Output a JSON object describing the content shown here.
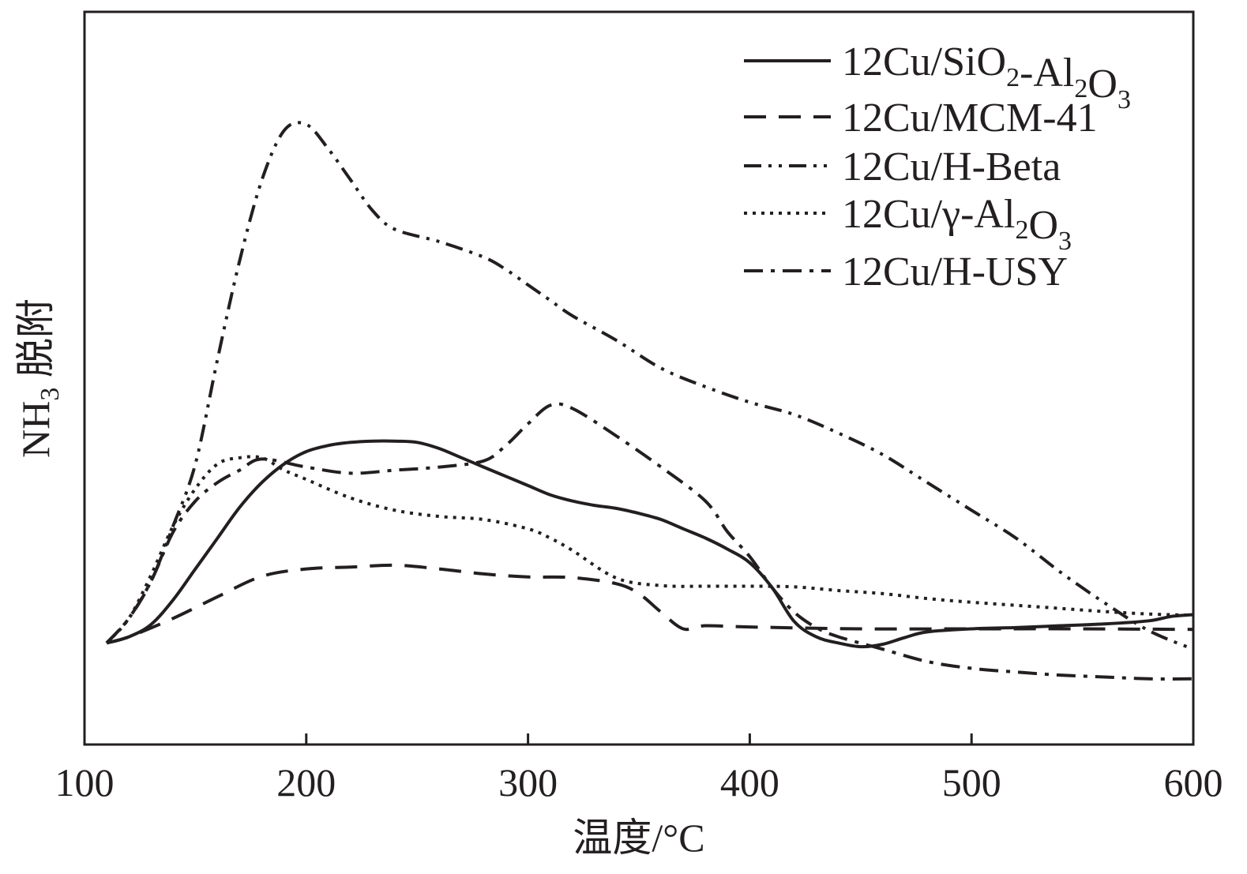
{
  "chart_data": {
    "type": "line",
    "xlabel": "温度/°C",
    "ylabel": "NH3 脱附",
    "ylabel_main": "NH",
    "ylabel_sub": "3",
    "ylabel_rest": " 脱附",
    "xlim": [
      100,
      600
    ],
    "ylim": [
      0,
      100
    ],
    "xticks": [
      100,
      200,
      300,
      400,
      500,
      600
    ],
    "xtick_labels": [
      "100",
      "200",
      "300",
      "400",
      "500",
      "600"
    ],
    "grid": false,
    "legend_position": "top-right",
    "series": [
      {
        "name": "12Cu/SiO2-Al2O3",
        "name_parts": [
          {
            "t": "12Cu/SiO"
          },
          {
            "t": "2",
            "sub": true
          },
          {
            "t": "-Al"
          },
          {
            "t": "2",
            "sub": true
          },
          {
            "t": "O"
          },
          {
            "t": "3",
            "sub": true
          }
        ],
        "dash": "solid",
        "x": [
          110,
          120,
          130,
          140,
          150,
          160,
          170,
          180,
          190,
          200,
          210,
          220,
          230,
          240,
          250,
          260,
          270,
          280,
          290,
          300,
          310,
          320,
          330,
          340,
          350,
          360,
          370,
          380,
          390,
          400,
          410,
          420,
          430,
          440,
          450,
          460,
          470,
          480,
          500,
          520,
          540,
          560,
          580,
          590,
          600
        ],
        "y": [
          8,
          9,
          11,
          15,
          20,
          25,
          30,
          34,
          37,
          39,
          40,
          40.5,
          40.7,
          40.7,
          40.5,
          39.5,
          38,
          36.5,
          35,
          33.5,
          32,
          31,
          30.3,
          29.8,
          29,
          28,
          26.5,
          25,
          23.2,
          21,
          17,
          11.5,
          9,
          8,
          7.4,
          7.8,
          8.9,
          9.8,
          10.3,
          10.5,
          10.8,
          11.1,
          11.6,
          12.3,
          12.6
        ]
      },
      {
        "name": "12Cu/MCM-41",
        "name_parts": [
          {
            "t": "12Cu/MCM-41"
          }
        ],
        "dash": "dash",
        "x": [
          110,
          120,
          140,
          160,
          180,
          200,
          220,
          240,
          260,
          280,
          300,
          320,
          340,
          350,
          360,
          370,
          380,
          400,
          450,
          500,
          550,
          600
        ],
        "y": [
          8,
          9,
          12,
          15.5,
          18.8,
          20,
          20.3,
          20.6,
          20,
          19.2,
          18.7,
          18.6,
          17.6,
          16,
          13,
          10.3,
          10.8,
          10.6,
          10.3,
          10.3,
          10.3,
          10.2
        ]
      },
      {
        "name": "12Cu/H-Beta",
        "name_parts": [
          {
            "t": "12Cu/H-Beta"
          }
        ],
        "dash": "dash-dot-dot",
        "x": [
          110,
          120,
          130,
          140,
          150,
          160,
          170,
          180,
          190,
          200,
          210,
          220,
          230,
          240,
          260,
          280,
          290,
          300,
          310,
          320,
          340,
          360,
          380,
          400,
          420,
          440,
          460,
          480,
          500,
          520,
          540,
          560,
          580,
          600
        ],
        "y": [
          8,
          12,
          18,
          27,
          37,
          54,
          70,
          83,
          91,
          92,
          88,
          83,
          78,
          75,
          73,
          70.5,
          68.5,
          66,
          63.5,
          61,
          57,
          52.5,
          49.5,
          47,
          45,
          42,
          38.5,
          34,
          29.5,
          25,
          19.5,
          14.5,
          10,
          7
        ]
      },
      {
        "name": "12Cu/γ-Al2O3",
        "name_parts": [
          {
            "t": "12Cu/γ-Al"
          },
          {
            "t": "2",
            "sub": true
          },
          {
            "t": "O"
          },
          {
            "t": "3",
            "sub": true
          }
        ],
        "dash": "dot",
        "x": [
          110,
          120,
          130,
          140,
          150,
          160,
          170,
          180,
          190,
          200,
          220,
          240,
          260,
          280,
          300,
          310,
          320,
          340,
          360,
          380,
          400,
          420,
          440,
          460,
          480,
          500,
          520,
          540,
          560,
          580,
          600
        ],
        "y": [
          8,
          12,
          19,
          27,
          33,
          37,
          38,
          38,
          36,
          34.5,
          31.5,
          29.5,
          28.5,
          28,
          26.5,
          25,
          23,
          18.5,
          17.3,
          17.2,
          17.2,
          17.1,
          16.5,
          16,
          15.2,
          14.6,
          14.1,
          13.6,
          13.1,
          12.7,
          12.5
        ]
      },
      {
        "name": "12Cu/H-USY",
        "name_parts": [
          {
            "t": "12Cu/H-USY"
          }
        ],
        "dash": "dash-dot",
        "x": [
          110,
          120,
          130,
          140,
          150,
          160,
          170,
          180,
          200,
          220,
          240,
          260,
          280,
          290,
          300,
          310,
          320,
          340,
          360,
          380,
          390,
          400,
          410,
          420,
          430,
          440,
          460,
          480,
          500,
          520,
          540,
          560,
          580,
          600
        ],
        "y": [
          8,
          12,
          18,
          26,
          31,
          34,
          36,
          37.8,
          36.5,
          35.5,
          36,
          36.5,
          37.5,
          40,
          43.5,
          46.5,
          46,
          41.5,
          36.5,
          31,
          26,
          22,
          17,
          13,
          10.5,
          9,
          7,
          5,
          3.9,
          3.3,
          2.8,
          2.5,
          2.2,
          2.2
        ]
      }
    ]
  }
}
